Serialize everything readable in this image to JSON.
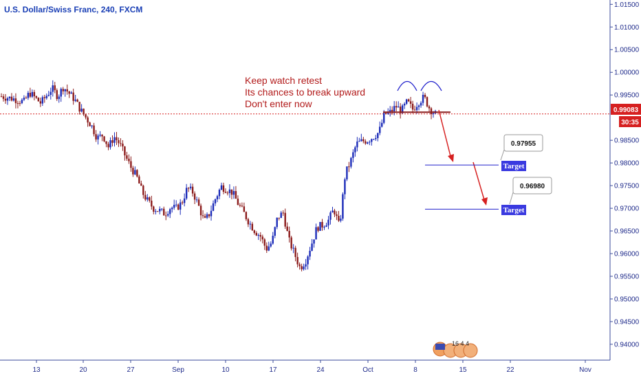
{
  "chart_data": {
    "type": "candlestick",
    "title": "U.S. Dollar/Swiss Franc, 240, FXCM",
    "y_axis": {
      "ticks": [
        "1.01500",
        "1.01000",
        "1.00500",
        "1.00000",
        "0.99500",
        "0.98500",
        "0.98000",
        "0.97500",
        "0.97000",
        "0.96500",
        "0.96000",
        "0.95500",
        "0.95000",
        "0.94500",
        "0.94000"
      ],
      "range": [
        0.9365,
        1.0155
      ]
    },
    "x_axis": {
      "ticks": [
        "13",
        "20",
        "27",
        "Sep",
        "10",
        "17",
        "24",
        "Oct",
        "8",
        "15",
        "22",
        "Nov"
      ]
    },
    "current_price": "0.99083",
    "countdown": "30:35",
    "price_path": [
      [
        0,
        0.9947
      ],
      [
        2,
        0.9942
      ],
      [
        4,
        0.9935
      ],
      [
        5,
        0.9955
      ],
      [
        7,
        0.9932
      ],
      [
        9,
        0.9965
      ],
      [
        10,
        0.9947
      ],
      [
        11,
        0.9968
      ],
      [
        13,
        0.994
      ],
      [
        14,
        0.9918
      ],
      [
        16,
        0.9882
      ],
      [
        17,
        0.9855
      ],
      [
        18,
        0.9862
      ],
      [
        19,
        0.9835
      ],
      [
        20,
        0.9858
      ],
      [
        21,
        0.9842
      ],
      [
        22,
        0.9815
      ],
      [
        23,
        0.979
      ],
      [
        24,
        0.977
      ],
      [
        25,
        0.9735
      ],
      [
        26,
        0.9715
      ],
      [
        27,
        0.97
      ],
      [
        28,
        0.9695
      ],
      [
        29,
        0.9688
      ],
      [
        30,
        0.9702
      ],
      [
        31,
        0.97
      ],
      [
        32,
        0.9712
      ],
      [
        33,
        0.9745
      ],
      [
        34,
        0.9735
      ],
      [
        35,
        0.9705
      ],
      [
        36,
        0.967
      ],
      [
        37,
        0.969
      ],
      [
        38,
        0.9722
      ],
      [
        39,
        0.9748
      ],
      [
        40,
        0.9742
      ],
      [
        41,
        0.9735
      ],
      [
        42,
        0.971
      ],
      [
        43,
        0.969
      ],
      [
        44,
        0.9668
      ],
      [
        45,
        0.965
      ],
      [
        46,
        0.9638
      ],
      [
        47,
        0.961
      ],
      [
        48,
        0.9625
      ],
      [
        49,
        0.968
      ],
      [
        50,
        0.969
      ],
      [
        51,
        0.963
      ],
      [
        52,
        0.96
      ],
      [
        53,
        0.9568
      ],
      [
        54,
        0.9585
      ],
      [
        55,
        0.962
      ],
      [
        56,
        0.9658
      ],
      [
        57,
        0.9663
      ],
      [
        58,
        0.9673
      ],
      [
        59,
        0.9698
      ],
      [
        60,
        0.9658
      ],
      [
        61,
        0.9775
      ],
      [
        62,
        0.9805
      ],
      [
        63,
        0.9842
      ],
      [
        64,
        0.9848
      ],
      [
        65,
        0.985
      ],
      [
        66,
        0.9858
      ],
      [
        67,
        0.9868
      ],
      [
        68,
        0.9908
      ],
      [
        69,
        0.9912
      ],
      [
        70,
        0.9925
      ],
      [
        71,
        0.9915
      ],
      [
        72,
        0.9935
      ],
      [
        73,
        0.9918
      ],
      [
        74,
        0.9935
      ],
      [
        75,
        0.9945
      ],
      [
        76,
        0.992
      ],
      [
        77,
        0.9908
      ]
    ],
    "annotations": {
      "note_lines": [
        "Keep watch retest",
        "Its chances to break upward",
        "Don't enter now"
      ],
      "targets": [
        {
          "value_label": "0.97955",
          "level": 0.97955,
          "tag": "Target"
        },
        {
          "value_label": "0.96980",
          "level": 0.9698,
          "tag": "Target"
        }
      ],
      "resistance_level": 0.9912,
      "dotted_level": 0.99083
    },
    "badge_text": "16 4 4"
  },
  "colors": {
    "up_candle": "#1a2ab8",
    "down_candle": "#8b1a1a",
    "accent_red": "#d62020",
    "accent_blue": "#2222cc",
    "axis_text": "#1e2a8a",
    "target_fill": "#3a3ae0"
  }
}
